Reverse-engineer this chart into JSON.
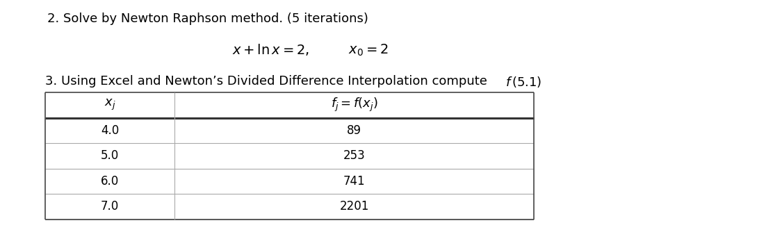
{
  "title_q2": "2. Solve by Newton Raphson method. (5 iterations)",
  "title_q3_plain": "3. Using Excel and Newton’s Divided Difference Interpolation compute ",
  "title_q3_italic": "f (5.1)",
  "col1_header": "$x_j$",
  "col2_header": "$f_j = f(x_j)$",
  "table_data": [
    [
      "4.0",
      "89"
    ],
    [
      "5.0",
      "253"
    ],
    [
      "6.0",
      "741"
    ],
    [
      "7.0",
      "2201"
    ]
  ],
  "bg_color": "#ffffff",
  "text_color": "#000000",
  "font_size_title": 13,
  "font_size_eq": 13,
  "font_size_table": 12
}
